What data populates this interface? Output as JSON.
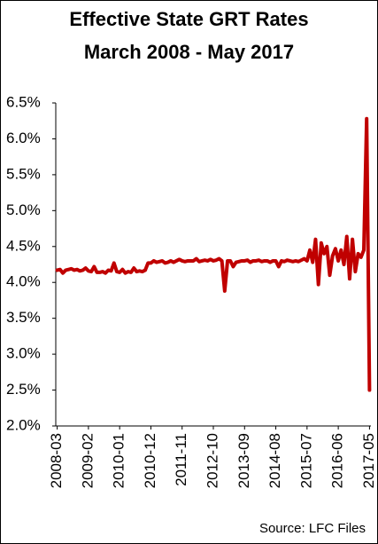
{
  "chart_data": {
    "type": "line",
    "title": "Effective State GRT Rates March 2008 - May 2017",
    "source": "Source: LFC Files",
    "color": "#c00000",
    "categories": [
      "2008-03",
      null,
      null,
      null,
      null,
      null,
      null,
      null,
      null,
      null,
      null,
      "2009-02",
      null,
      null,
      null,
      null,
      null,
      null,
      null,
      null,
      null,
      null,
      "2010-01",
      null,
      null,
      null,
      null,
      null,
      null,
      null,
      null,
      null,
      null,
      "2010-12",
      null,
      null,
      null,
      null,
      null,
      null,
      null,
      null,
      null,
      null,
      "2011-11",
      null,
      null,
      null,
      null,
      null,
      null,
      null,
      null,
      null,
      null,
      "2012-10",
      null,
      null,
      null,
      null,
      null,
      null,
      null,
      null,
      null,
      null,
      "2013-09",
      null,
      null,
      null,
      null,
      null,
      null,
      null,
      null,
      null,
      null,
      "2014-08",
      null,
      null,
      null,
      null,
      null,
      null,
      null,
      null,
      null,
      null,
      "2015-07",
      null,
      null,
      null,
      null,
      null,
      null,
      null,
      null,
      null,
      null,
      "2016-06",
      null,
      null,
      null,
      null,
      null,
      null,
      null,
      null,
      null,
      null,
      "2017-05"
    ],
    "values": [
      4.17,
      4.18,
      4.13,
      4.17,
      4.18,
      4.19,
      4.17,
      4.18,
      4.16,
      4.17,
      4.2,
      4.16,
      4.15,
      4.22,
      4.14,
      4.14,
      4.15,
      4.13,
      4.17,
      4.16,
      4.27,
      4.15,
      4.14,
      4.18,
      4.13,
      4.15,
      4.14,
      4.2,
      4.15,
      4.16,
      4.15,
      4.17,
      4.27,
      4.27,
      4.3,
      4.28,
      4.29,
      4.3,
      4.27,
      4.28,
      4.3,
      4.28,
      4.3,
      4.32,
      4.3,
      4.29,
      4.3,
      4.3,
      4.3,
      4.33,
      4.29,
      4.3,
      4.31,
      4.3,
      4.32,
      4.3,
      4.31,
      4.33,
      4.3,
      3.88,
      4.3,
      4.3,
      4.22,
      4.28,
      4.29,
      4.3,
      4.3,
      4.31,
      4.28,
      4.3,
      4.3,
      4.31,
      4.29,
      4.3,
      4.3,
      4.28,
      4.3,
      4.3,
      4.22,
      4.3,
      4.29,
      4.31,
      4.3,
      4.29,
      4.3,
      4.29,
      4.31,
      4.33,
      4.3,
      4.45,
      4.28,
      4.6,
      3.97,
      4.55,
      4.4,
      4.5,
      4.1,
      4.37,
      4.47,
      4.3,
      4.45,
      4.25,
      4.64,
      4.05,
      4.6,
      4.15,
      4.4,
      4.35,
      4.45,
      6.28,
      2.5
    ],
    "ylim": [
      2.0,
      6.5
    ],
    "yticks": [
      {
        "value": 2.0,
        "label": "2.0%"
      },
      {
        "value": 2.5,
        "label": "2.5%"
      },
      {
        "value": 3.0,
        "label": "3.0%"
      },
      {
        "value": 3.5,
        "label": "3.5%"
      },
      {
        "value": 4.0,
        "label": "4.0%"
      },
      {
        "value": 4.5,
        "label": "4.5%"
      },
      {
        "value": 5.0,
        "label": "5.0%"
      },
      {
        "value": 5.5,
        "label": "5.5%"
      },
      {
        "value": 6.0,
        "label": "6.0%"
      },
      {
        "value": 6.5,
        "label": "6.5%"
      }
    ],
    "grid": false
  }
}
